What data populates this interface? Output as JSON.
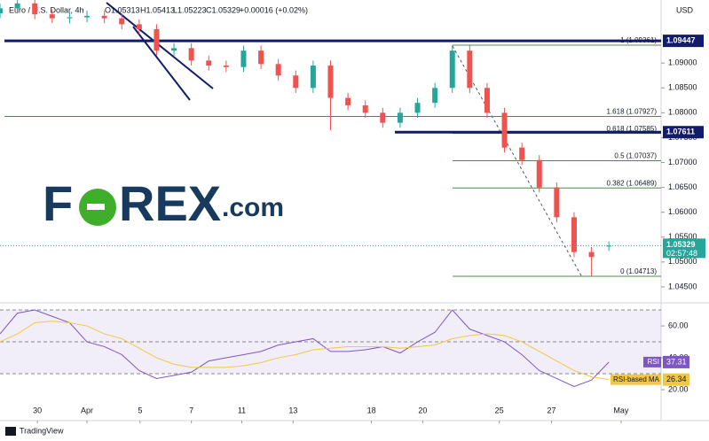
{
  "header": {
    "symbol": "Euro / U.S. Dollar, 4h",
    "open": "O1.05313",
    "high": "H1.05413",
    "low": "L1.05223",
    "close": "C1.05329",
    "change": "+0.00016 (+0.02%)",
    "currency": "USD"
  },
  "logo": {
    "lead": "F",
    "tail": "REX",
    "suffix": ".com"
  },
  "footer": "TradingView",
  "chart_data": [
    {
      "type": "candlestick",
      "x": [
        0,
        2,
        4,
        6,
        8,
        10,
        12,
        14,
        16,
        18,
        20,
        22,
        24,
        26,
        28,
        30,
        32,
        34,
        36,
        38,
        40,
        42,
        44,
        46,
        48,
        50,
        52,
        54,
        56,
        58,
        60,
        62,
        64,
        66,
        68,
        70
      ],
      "open": [
        1.1,
        1.101,
        1.102,
        1.0998,
        1.099,
        1.0992,
        1.0995,
        1.099,
        1.0978,
        1.0968,
        1.0925,
        1.093,
        1.0905,
        1.0895,
        1.0892,
        1.0925,
        1.0898,
        1.0875,
        1.085,
        1.0895,
        1.083,
        1.0815,
        1.08,
        1.078,
        1.08,
        1.082,
        1.085,
        1.0925,
        1.085,
        1.08,
        1.073,
        1.0705,
        1.065,
        1.059,
        1.052,
        1.05313
      ],
      "high": [
        1.102,
        1.103,
        1.103,
        1.1008,
        1.1002,
        1.1005,
        1.1005,
        1.1,
        1.0988,
        1.0978,
        1.094,
        1.094,
        1.0915,
        1.0905,
        1.0935,
        1.0935,
        1.0908,
        1.0885,
        1.0905,
        1.0905,
        1.084,
        1.0825,
        1.081,
        1.081,
        1.083,
        1.086,
        1.0936,
        1.0935,
        1.086,
        1.081,
        1.074,
        1.0715,
        1.066,
        1.06,
        1.053,
        1.05413
      ],
      "low": [
        1.099,
        1.1,
        1.0988,
        1.098,
        1.098,
        1.0982,
        1.098,
        1.0968,
        1.0958,
        1.0915,
        1.0915,
        1.0895,
        1.0885,
        1.0882,
        1.0882,
        1.0888,
        1.0865,
        1.084,
        1.084,
        1.0765,
        1.0805,
        1.079,
        1.077,
        1.077,
        1.079,
        1.081,
        1.084,
        1.084,
        1.079,
        1.072,
        1.0695,
        1.064,
        1.058,
        1.051,
        1.04713,
        1.05223
      ],
      "close": [
        1.101,
        1.102,
        1.0998,
        1.099,
        1.0992,
        1.0995,
        1.099,
        1.0978,
        1.0968,
        1.0925,
        1.093,
        1.0905,
        1.0895,
        1.0892,
        1.0925,
        1.0898,
        1.0875,
        1.085,
        1.0895,
        1.083,
        1.0815,
        1.08,
        1.078,
        1.08,
        1.082,
        1.085,
        1.0925,
        1.085,
        1.08,
        1.073,
        1.0705,
        1.065,
        1.059,
        1.052,
        1.051,
        1.05329
      ],
      "up_color": "#26a69a",
      "down_color": "#ef5350",
      "xlim": [
        0,
        76
      ],
      "ylim": [
        1.04214,
        1.10268
      ],
      "yticks": [
        {
          "value": 1.09,
          "label": "1.09000"
        },
        {
          "value": 1.085,
          "label": "1.08500"
        },
        {
          "value": 1.08,
          "label": "1.08000"
        },
        {
          "value": 1.075,
          "label": "1.07500"
        },
        {
          "value": 1.07,
          "label": "1.07000"
        },
        {
          "value": 1.065,
          "label": "1.06500"
        },
        {
          "value": 1.06,
          "label": "1.06000"
        },
        {
          "value": 1.055,
          "label": "1.05500"
        },
        {
          "value": 1.05,
          "label": "1.05000"
        },
        {
          "value": 1.045,
          "label": "1.04500"
        }
      ],
      "levels": [
        {
          "value": 1.09447,
          "label": "1.09447"
        },
        {
          "value": 1.07611,
          "label": "1.07611"
        }
      ],
      "level_color": "#131c6b",
      "fib": [
        {
          "value": 1.09361,
          "label": "1 (1.09361)"
        },
        {
          "value": 1.07927,
          "label": "1.618 (1.07927)"
        },
        {
          "value": 1.07585,
          "label": "0.618 (1.07585)"
        },
        {
          "value": 1.07037,
          "label": "0.5 (1.07037)"
        },
        {
          "value": 1.06489,
          "label": "0.382 (1.06489)"
        },
        {
          "value": 1.04713,
          "label": "0 (1.04713)"
        }
      ],
      "fib_color": "#4c8c4a",
      "last_price": {
        "value": 1.05329,
        "label": "1.05329"
      },
      "countdown": "02:57:48"
    },
    {
      "type": "line",
      "x": [
        0,
        2,
        4,
        6,
        8,
        10,
        12,
        14,
        16,
        18,
        20,
        22,
        24,
        26,
        28,
        30,
        32,
        34,
        36,
        38,
        40,
        42,
        44,
        46,
        48,
        50,
        52,
        54,
        56,
        58,
        60,
        62,
        64,
        66,
        68,
        70
      ],
      "xlim": [
        0,
        76
      ],
      "ylim": [
        11.7,
        72.8
      ],
      "xticks": [
        {
          "value": 4.3,
          "label": "30"
        },
        {
          "value": 10,
          "label": "Apr"
        },
        {
          "value": 16.1,
          "label": "5"
        },
        {
          "value": 22,
          "label": "7"
        },
        {
          "value": 27.8,
          "label": "11"
        },
        {
          "value": 33.7,
          "label": "13"
        },
        {
          "value": 42.7,
          "label": "18"
        },
        {
          "value": 48.6,
          "label": "20"
        },
        {
          "value": 57.4,
          "label": "25"
        },
        {
          "value": 63.4,
          "label": "27"
        },
        {
          "value": 71.4,
          "label": "May"
        }
      ],
      "yticks": [
        {
          "value": 60,
          "label": "60.00"
        },
        {
          "value": 40,
          "label": "40.00"
        },
        {
          "value": 20,
          "label": "20.00"
        }
      ],
      "bands": [
        70,
        50,
        30
      ],
      "series": [
        {
          "name": "RSI",
          "color": "#7e57c2",
          "values": [
            55,
            68,
            70,
            66,
            62,
            50,
            47,
            42,
            32,
            27,
            29,
            31,
            38,
            40,
            42,
            44,
            48,
            50,
            52,
            44,
            44,
            45,
            47,
            43,
            50,
            56,
            70,
            58,
            54,
            50,
            42,
            32,
            27,
            22,
            26,
            37.31
          ]
        },
        {
          "name": "RSI-based MA",
          "color": "#f2c744",
          "values": [
            50,
            55,
            62,
            63,
            62,
            60,
            55,
            52,
            46,
            40,
            36,
            34,
            34,
            34,
            35,
            37,
            40,
            42,
            45,
            46,
            47,
            47,
            47,
            46,
            47,
            48,
            52,
            54,
            55,
            54,
            50,
            44,
            38,
            32,
            28,
            26.34
          ]
        }
      ]
    }
  ]
}
